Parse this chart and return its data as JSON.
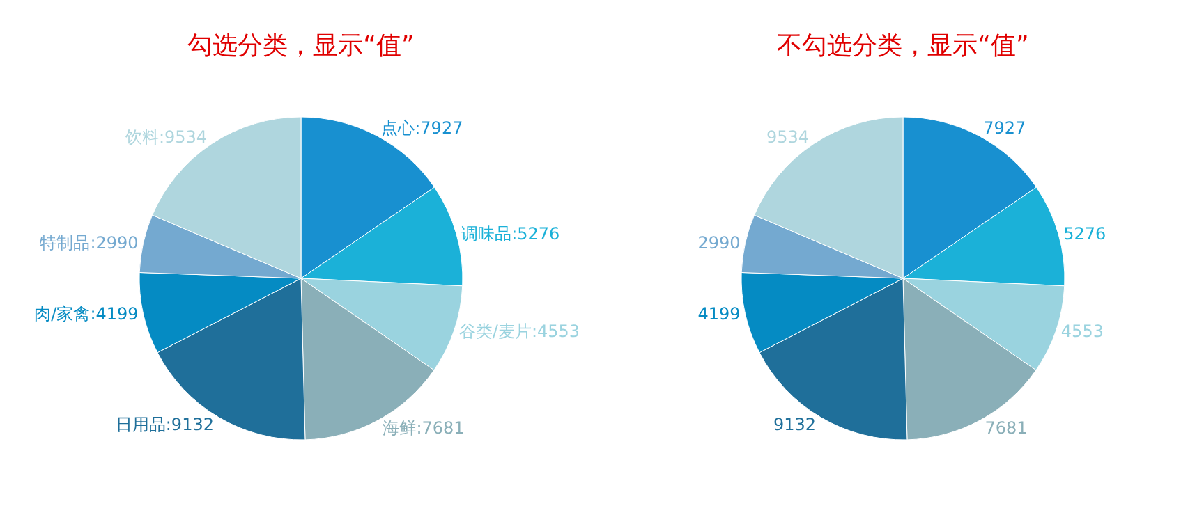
{
  "chart_data": [
    {
      "type": "pie",
      "title": "勾选分类，显示“值”",
      "categories": [
        null,
        null,
        null,
        null,
        null,
        null,
        null,
        null
      ],
      "values": [
        7927,
        5276,
        4553,
        7681,
        9132,
        4199,
        2990,
        9534
      ],
      "value_labels": [
        "点心:7927",
        "调味品:5276",
        "谷类/麦片:4553",
        "海鲜:7681",
        "日用品:9132",
        "肉/家禽:4199",
        "特制品:2990",
        "饮料:9534"
      ],
      "colors": [
        "#1890d0",
        "#1bb1d8",
        "#9ad3df",
        "#8aafb8",
        "#1f6f9a",
        "#058bc3",
        "#74a9d0",
        "#afd6de"
      ]
    },
    {
      "type": "pie",
      "title": "不勾选分类，显示“值”",
      "categories": [
        null,
        null,
        null,
        null,
        null,
        null,
        null,
        null
      ],
      "values": [
        7927,
        5276,
        4553,
        7681,
        9132,
        4199,
        2990,
        9534
      ],
      "data_labels": true,
      "colors": [
        "#1890d0",
        "#1bb1d8",
        "#9ad3df",
        "#8aafb8",
        "#1f6f9a",
        "#058bc3",
        "#74a9d0",
        "#afd6de"
      ]
    }
  ]
}
